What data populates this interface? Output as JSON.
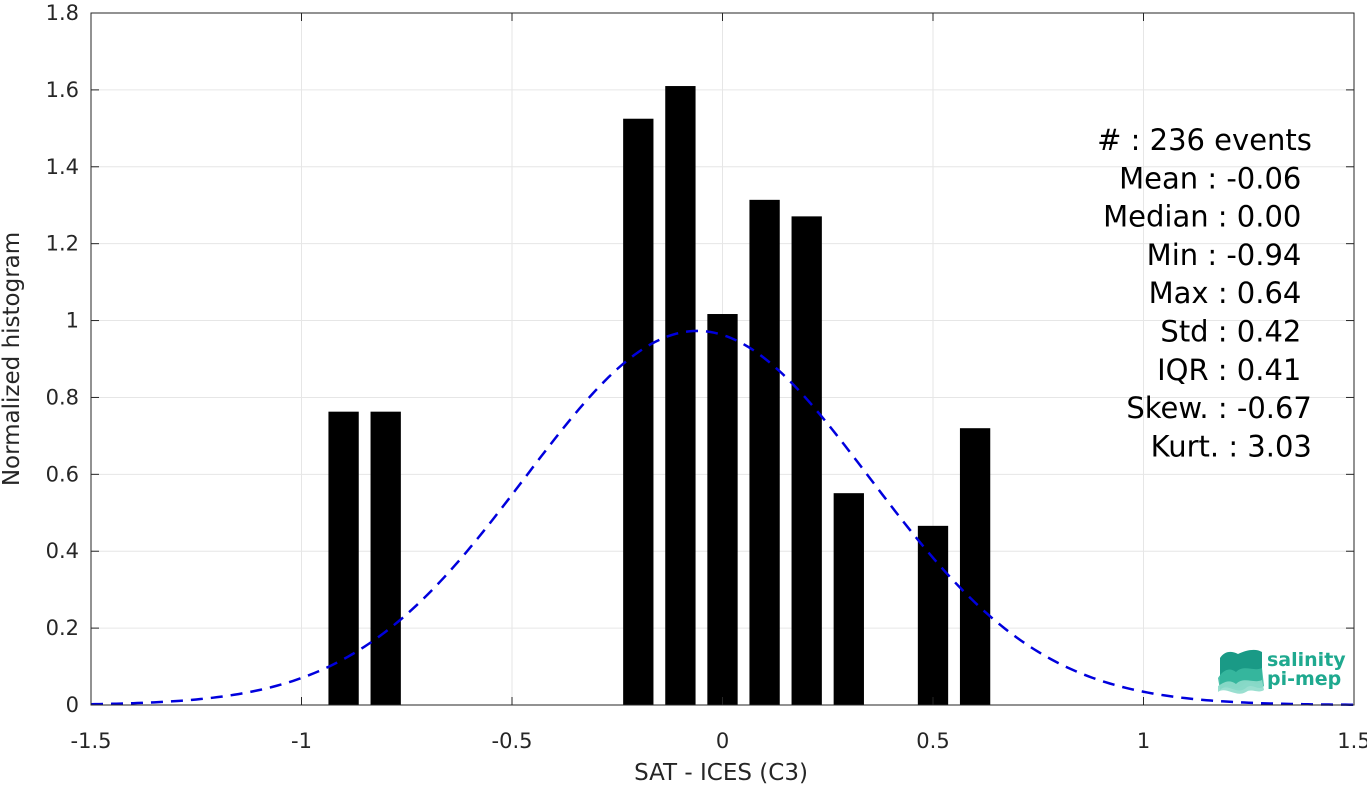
{
  "chart_data": {
    "type": "bar",
    "xlabel": "SAT - ICES (C3)",
    "ylabel": "Normalized histogram",
    "xlim": [
      -1.5,
      1.5
    ],
    "ylim": [
      0,
      1.8
    ],
    "grid": true,
    "x_ticks": [
      "-1.5",
      "-1",
      "-0.5",
      "0",
      "0.5",
      "1",
      "1.5"
    ],
    "y_ticks": [
      "0",
      "0.2",
      "0.4",
      "0.6",
      "0.8",
      "1",
      "1.2",
      "1.4",
      "1.6",
      "1.8"
    ],
    "bars": [
      {
        "x": -0.9,
        "y": 0.763
      },
      {
        "x": -0.8,
        "y": 0.763
      },
      {
        "x": -0.2,
        "y": 1.525
      },
      {
        "x": -0.1,
        "y": 1.61
      },
      {
        "x": 0.0,
        "y": 1.017
      },
      {
        "x": 0.1,
        "y": 1.314
      },
      {
        "x": 0.2,
        "y": 1.271
      },
      {
        "x": 0.3,
        "y": 0.551
      },
      {
        "x": 0.5,
        "y": 0.466
      },
      {
        "x": 0.6,
        "y": 0.72
      }
    ],
    "bar_width": 0.072,
    "bar_color": "#000000",
    "fit_curve": {
      "type": "gaussian",
      "mean": -0.06,
      "std": 0.41,
      "color": "#0000dd",
      "style": "dashed"
    },
    "stats": [
      {
        "label": "#  : 236 events",
        "anchor_x": 1.4
      },
      {
        "label": "Mean : -0.06",
        "anchor_x": 1.375
      },
      {
        "label": "Median : 0.00",
        "anchor_x": 1.375
      },
      {
        "label": "Min : -0.94",
        "anchor_x": 1.375
      },
      {
        "label": "Max : 0.64",
        "anchor_x": 1.375
      },
      {
        "label": "Std : 0.42",
        "anchor_x": 1.375
      },
      {
        "label": "IQR : 0.41",
        "anchor_x": 1.375
      },
      {
        "label": "Skew. : -0.67",
        "anchor_x": 1.4
      },
      {
        "label": "Kurt. : 3.03",
        "anchor_x": 1.4
      }
    ]
  },
  "logo": {
    "line1": "salinity",
    "line2": "pi-mep",
    "color": "#1fa98f"
  }
}
